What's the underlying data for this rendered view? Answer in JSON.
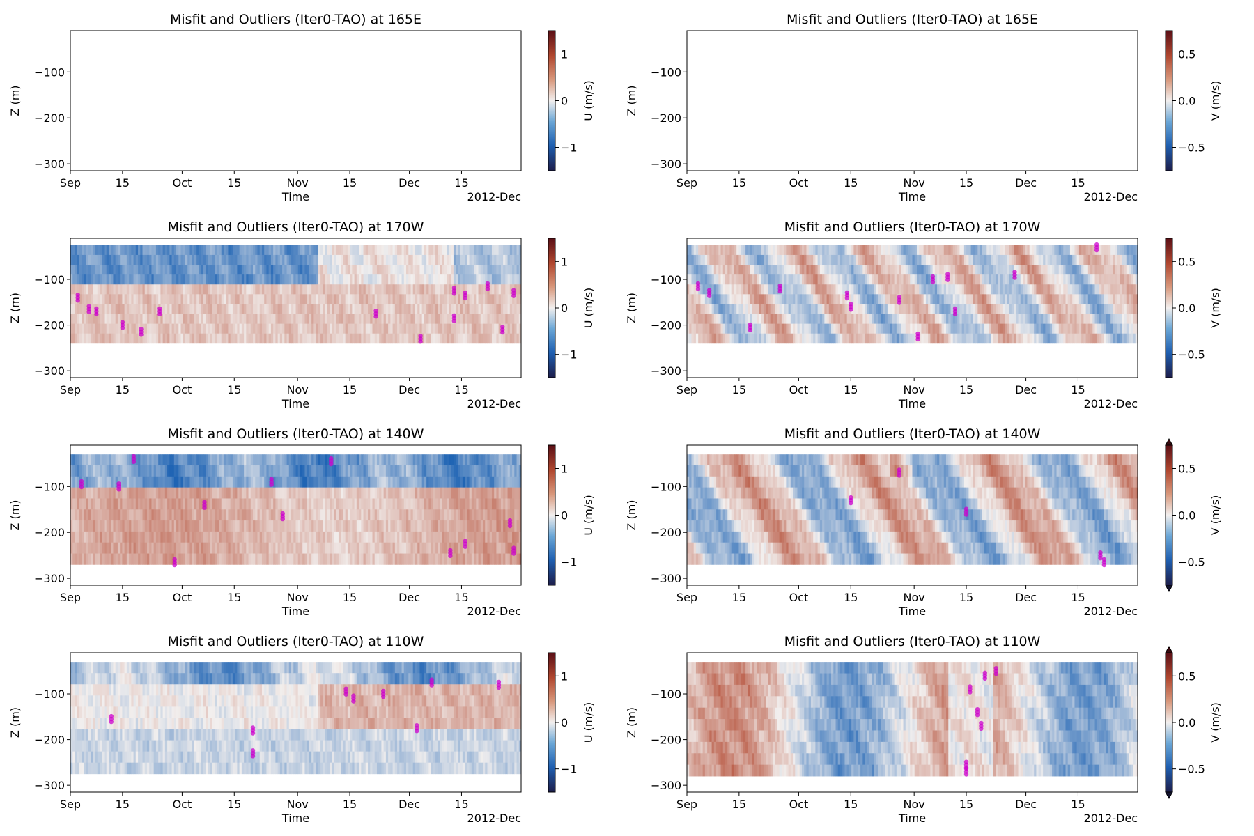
{
  "figure": {
    "x_tick_labels": [
      "Sep",
      "15",
      "Oct",
      "15",
      "Nov",
      "15",
      "Dec",
      "15"
    ],
    "x_offset_label": "2012-Dec",
    "x_axis_label": "Time",
    "y_axis_label": "Z (m)",
    "y_tick_labels": [
      "−100",
      "−200",
      "−300"
    ],
    "colormap": "balance (diverging blue-white-red)",
    "outlier_color": "#cc00cc"
  },
  "chart_data": [
    {
      "type": "heatmap",
      "title": "Misfit and Outliers (Iter0-TAO) at 165E",
      "variable": "U",
      "colorbar_label": "U (m/s)",
      "colorbar_ticks": [
        "−1",
        "0",
        "1"
      ],
      "clim": [
        -1.5,
        1.5
      ],
      "ylim": [
        -315,
        -10
      ],
      "xlim": [
        "2012-09-01",
        "2012-12-31"
      ],
      "has_data": false,
      "extend": "neither",
      "outliers": []
    },
    {
      "type": "heatmap",
      "title": "Misfit and Outliers (Iter0-TAO) at 165E",
      "variable": "V",
      "colorbar_label": "V (m/s)",
      "colorbar_ticks": [
        "−0.5",
        "0.0",
        "0.5"
      ],
      "clim": [
        -0.75,
        0.75
      ],
      "ylim": [
        -315,
        -10
      ],
      "xlim": [
        "2012-09-01",
        "2012-12-31"
      ],
      "has_data": false,
      "extend": "neither",
      "outliers": []
    },
    {
      "type": "heatmap",
      "title": "Misfit and Outliers (Iter0-TAO) at 170W",
      "variable": "U",
      "colorbar_label": "U (m/s)",
      "colorbar_ticks": [
        "−1",
        "0",
        "1"
      ],
      "clim": [
        -1.5,
        1.5
      ],
      "ylim": [
        -315,
        -10
      ],
      "xlim": [
        "2012-09-01",
        "2012-12-31"
      ],
      "has_data": true,
      "extend": "neither",
      "depth_range": [
        -240,
        -25
      ],
      "outliers": [
        {
          "date": "2012-09-03",
          "z": -140
        },
        {
          "date": "2012-09-06",
          "z": -165
        },
        {
          "date": "2012-09-08",
          "z": -170
        },
        {
          "date": "2012-09-15",
          "z": -200
        },
        {
          "date": "2012-09-20",
          "z": -215
        },
        {
          "date": "2012-09-25",
          "z": -170
        },
        {
          "date": "2012-11-22",
          "z": -175
        },
        {
          "date": "2012-12-04",
          "z": -230
        },
        {
          "date": "2012-12-13",
          "z": -185
        },
        {
          "date": "2012-12-13",
          "z": -125
        },
        {
          "date": "2012-12-16",
          "z": -135
        },
        {
          "date": "2012-12-22",
          "z": -115
        },
        {
          "date": "2012-12-26",
          "z": -210
        },
        {
          "date": "2012-12-29",
          "z": -130
        }
      ]
    },
    {
      "type": "heatmap",
      "title": "Misfit and Outliers (Iter0-TAO) at 170W",
      "variable": "V",
      "colorbar_label": "V (m/s)",
      "colorbar_ticks": [
        "−0.5",
        "0.0",
        "0.5"
      ],
      "clim": [
        -0.75,
        0.75
      ],
      "ylim": [
        -315,
        -10
      ],
      "xlim": [
        "2012-09-01",
        "2012-12-31"
      ],
      "has_data": true,
      "extend": "neither",
      "depth_range": [
        -240,
        -25
      ],
      "outliers": [
        {
          "date": "2012-09-04",
          "z": -115
        },
        {
          "date": "2012-09-07",
          "z": -130
        },
        {
          "date": "2012-09-18",
          "z": -205
        },
        {
          "date": "2012-09-26",
          "z": -120
        },
        {
          "date": "2012-10-14",
          "z": -135
        },
        {
          "date": "2012-10-15",
          "z": -160
        },
        {
          "date": "2012-10-28",
          "z": -145
        },
        {
          "date": "2012-11-02",
          "z": -225
        },
        {
          "date": "2012-11-06",
          "z": -100
        },
        {
          "date": "2012-11-10",
          "z": -95
        },
        {
          "date": "2012-11-12",
          "z": -170
        },
        {
          "date": "2012-11-28",
          "z": -90
        },
        {
          "date": "2012-12-20",
          "z": -30
        }
      ]
    },
    {
      "type": "heatmap",
      "title": "Misfit and Outliers (Iter0-TAO) at 140W",
      "variable": "U",
      "colorbar_label": "U (m/s)",
      "colorbar_ticks": [
        "−1",
        "0",
        "1"
      ],
      "clim": [
        -1.5,
        1.5
      ],
      "ylim": [
        -315,
        -10
      ],
      "xlim": [
        "2012-09-01",
        "2012-12-31"
      ],
      "has_data": true,
      "extend": "neither",
      "depth_range": [
        -270,
        -30
      ],
      "outliers": [
        {
          "date": "2012-09-04",
          "z": -95
        },
        {
          "date": "2012-09-14",
          "z": -100
        },
        {
          "date": "2012-09-18",
          "z": -40
        },
        {
          "date": "2012-09-29",
          "z": -265
        },
        {
          "date": "2012-10-07",
          "z": -140
        },
        {
          "date": "2012-10-25",
          "z": -90
        },
        {
          "date": "2012-10-28",
          "z": -165
        },
        {
          "date": "2012-11-10",
          "z": -45
        },
        {
          "date": "2012-12-12",
          "z": -245
        },
        {
          "date": "2012-12-16",
          "z": -225
        },
        {
          "date": "2012-12-28",
          "z": -180
        },
        {
          "date": "2012-12-29",
          "z": -240
        }
      ]
    },
    {
      "type": "heatmap",
      "title": "Misfit and Outliers (Iter0-TAO) at 140W",
      "variable": "V",
      "colorbar_label": "V (m/s)",
      "colorbar_ticks": [
        "−0.5",
        "0.0",
        "0.5"
      ],
      "clim": [
        -0.75,
        0.75
      ],
      "ylim": [
        -315,
        -10
      ],
      "xlim": [
        "2012-09-01",
        "2012-12-31"
      ],
      "has_data": true,
      "extend": "both",
      "depth_range": [
        -270,
        -30
      ],
      "outliers": [
        {
          "date": "2012-10-15",
          "z": -130
        },
        {
          "date": "2012-10-28",
          "z": -70
        },
        {
          "date": "2012-11-15",
          "z": -155
        },
        {
          "date": "2012-12-21",
          "z": -250
        },
        {
          "date": "2012-12-22",
          "z": -265
        }
      ]
    },
    {
      "type": "heatmap",
      "title": "Misfit and Outliers (Iter0-TAO) at 110W",
      "variable": "U",
      "colorbar_label": "U (m/s)",
      "colorbar_ticks": [
        "−1",
        "0",
        "1"
      ],
      "clim": [
        -1.5,
        1.5
      ],
      "ylim": [
        -315,
        -10
      ],
      "xlim": [
        "2012-09-01",
        "2012-12-31"
      ],
      "has_data": true,
      "extend": "neither",
      "depth_range": [
        -275,
        -30
      ],
      "outliers": [
        {
          "date": "2012-09-12",
          "z": -155
        },
        {
          "date": "2012-10-20",
          "z": -180
        },
        {
          "date": "2012-10-20",
          "z": -230
        },
        {
          "date": "2012-11-14",
          "z": -95
        },
        {
          "date": "2012-11-16",
          "z": -110
        },
        {
          "date": "2012-11-24",
          "z": -100
        },
        {
          "date": "2012-12-03",
          "z": -175
        },
        {
          "date": "2012-12-07",
          "z": -75
        },
        {
          "date": "2012-12-25",
          "z": -80
        }
      ]
    },
    {
      "type": "heatmap",
      "title": "Misfit and Outliers (Iter0-TAO) at 110W",
      "variable": "V",
      "colorbar_label": "V (m/s)",
      "colorbar_ticks": [
        "−0.5",
        "0.0",
        "0.5"
      ],
      "clim": [
        -0.75,
        0.75
      ],
      "ylim": [
        -315,
        -10
      ],
      "xlim": [
        "2012-09-01",
        "2012-12-31"
      ],
      "has_data": true,
      "extend": "both",
      "depth_range": [
        -280,
        -30
      ],
      "outliers": [
        {
          "date": "2012-11-15",
          "z": -255
        },
        {
          "date": "2012-11-15",
          "z": -270
        },
        {
          "date": "2012-11-16",
          "z": -90
        },
        {
          "date": "2012-11-18",
          "z": -140
        },
        {
          "date": "2012-11-19",
          "z": -170
        },
        {
          "date": "2012-11-20",
          "z": -60
        },
        {
          "date": "2012-11-23",
          "z": -50
        }
      ]
    }
  ]
}
